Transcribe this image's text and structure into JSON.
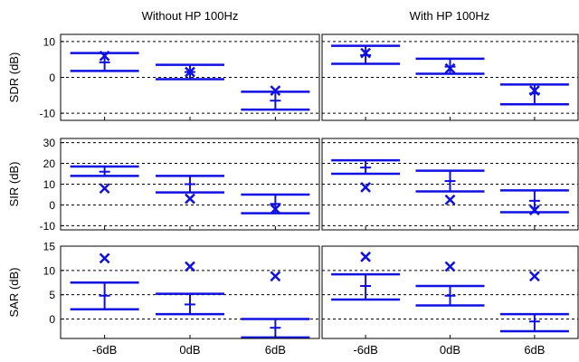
{
  "column_titles": [
    "Without HP 100Hz",
    "With HP 100Hz"
  ],
  "x_tick_labels": [
    "-6dB",
    "0dB",
    "6dB"
  ],
  "colors": {
    "mark": "#1010e0",
    "frame": "#000000",
    "grid": "#000000"
  },
  "chart_data": [
    {
      "type": "errorbar",
      "metric": "SDR",
      "ylabel": "SDR (dB)",
      "ylim": [
        -12,
        12
      ],
      "yticks": [
        -10,
        0,
        10
      ],
      "panels": [
        {
          "title": "Without HP 100Hz",
          "categories": [
            "-6dB",
            "0dB",
            "6dB"
          ],
          "mean": [
            4.2,
            1.5,
            -6.5
          ],
          "upper": [
            6.8,
            3.5,
            -4.0
          ],
          "lower": [
            1.8,
            -0.5,
            -9.0
          ],
          "x_marker": [
            6.0,
            1.5,
            -3.7
          ]
        },
        {
          "title": "With HP 100Hz",
          "categories": [
            "-6dB",
            "0dB",
            "6dB"
          ],
          "mean": [
            6.2,
            3.0,
            -4.5
          ],
          "upper": [
            8.8,
            5.2,
            -2.0
          ],
          "lower": [
            3.8,
            1.0,
            -7.5
          ],
          "x_marker": [
            6.8,
            2.5,
            -3.7
          ]
        }
      ]
    },
    {
      "type": "errorbar",
      "metric": "SIR",
      "ylabel": "SIR (dB)",
      "ylim": [
        -12,
        32
      ],
      "yticks": [
        -10,
        0,
        10,
        20,
        30
      ],
      "panels": [
        {
          "title": "Without HP 100Hz",
          "categories": [
            "-6dB",
            "0dB",
            "6dB"
          ],
          "mean": [
            16.0,
            10.0,
            0.5
          ],
          "upper": [
            18.5,
            14.0,
            5.0
          ],
          "lower": [
            14.0,
            6.0,
            -4.0
          ],
          "x_marker": [
            8.0,
            3.0,
            -2.0
          ]
        },
        {
          "title": "With HP 100Hz",
          "categories": [
            "-6dB",
            "0dB",
            "6dB"
          ],
          "mean": [
            18.0,
            11.5,
            2.0
          ],
          "upper": [
            21.5,
            16.5,
            7.0
          ],
          "lower": [
            15.0,
            6.5,
            -3.5
          ],
          "x_marker": [
            8.5,
            2.5,
            -2.5
          ]
        }
      ]
    },
    {
      "type": "errorbar",
      "metric": "SAR",
      "ylabel": "SAR (dB)",
      "ylim": [
        -4,
        15
      ],
      "yticks": [
        0,
        5,
        10,
        15
      ],
      "panels": [
        {
          "title": "Without HP 100Hz",
          "categories": [
            "-6dB",
            "0dB",
            "6dB"
          ],
          "mean": [
            4.8,
            3.0,
            -1.8
          ],
          "upper": [
            7.5,
            5.2,
            0.0
          ],
          "lower": [
            2.0,
            1.0,
            -3.8
          ],
          "x_marker": [
            12.5,
            10.8,
            8.8
          ]
        },
        {
          "title": "With HP 100Hz",
          "categories": [
            "-6dB",
            "0dB",
            "6dB"
          ],
          "mean": [
            6.8,
            4.8,
            -0.5
          ],
          "upper": [
            9.2,
            6.8,
            1.0
          ],
          "lower": [
            4.0,
            2.8,
            -2.5
          ],
          "x_marker": [
            12.8,
            10.8,
            8.8
          ]
        }
      ]
    }
  ]
}
